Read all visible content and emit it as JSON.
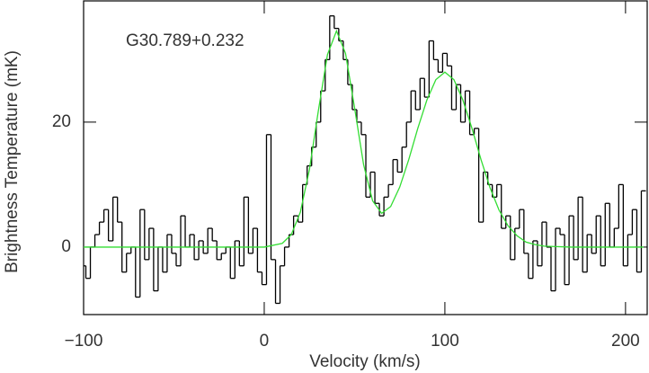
{
  "chart_data": {
    "type": "step",
    "annotation": "G30.789+0.232",
    "x_label": "Velocity (km/s)",
    "y_label": "Brightness Temperature (mK)",
    "xlim": [
      -100,
      212
    ],
    "ylim": [
      -10.8,
      39.4
    ],
    "xticks": [
      {
        "value": -100,
        "label": "−100"
      },
      0,
      100,
      200
    ],
    "yticks": [
      0,
      20
    ],
    "series": [
      {
        "color": "#000000",
        "x": [
          -100,
          -97.5,
          -95,
          -92.5,
          -90,
          -87.5,
          -85,
          -82.5,
          -80,
          -77.5,
          -75,
          -72.5,
          -70,
          -67.5,
          -65,
          -62.5,
          -60,
          -57.5,
          -55,
          -52.5,
          -50,
          -47.5,
          -45,
          -42.5,
          -40,
          -37.5,
          -35,
          -32.5,
          -30,
          -27.5,
          -25,
          -22.5,
          -20,
          -17.5,
          -15,
          -12.5,
          -10,
          -7.5,
          -5,
          -2.5,
          0,
          2.5,
          5,
          7.5,
          10,
          12.5,
          15,
          17.5,
          20,
          22.5,
          25,
          27.5,
          30,
          32.5,
          35,
          37.5,
          40,
          42.5,
          45,
          47.5,
          50,
          52.5,
          55,
          57.5,
          60,
          62.5,
          65,
          67.5,
          70,
          72.5,
          75,
          77.5,
          80,
          82.5,
          85,
          87.5,
          90,
          92.5,
          95,
          97.5,
          100,
          102.5,
          105,
          107.5,
          110,
          112.5,
          115,
          117.5,
          120,
          122.5,
          125,
          127.5,
          130,
          132.5,
          135,
          137.5,
          140,
          142.5,
          145,
          147.5,
          150,
          152.5,
          155,
          157.5,
          160,
          162.5,
          165,
          167.5,
          170,
          172.5,
          175,
          177.5,
          180,
          182.5,
          185,
          187.5,
          190,
          192.5,
          195,
          197.5,
          200,
          202.5,
          205,
          207.5,
          210
        ],
        "values": [
          -3,
          -5,
          0,
          2,
          4,
          6,
          1,
          8,
          4,
          -4,
          -1,
          0,
          -8,
          6,
          -2,
          3,
          -7,
          0,
          -4,
          2,
          -1,
          -3,
          5,
          0,
          2,
          -2,
          1,
          -1,
          3,
          1,
          -2,
          -1,
          0,
          -5,
          1,
          -3,
          8,
          -1,
          3,
          -4,
          -6,
          18,
          -2,
          -9,
          -3,
          0,
          2,
          5,
          4,
          10,
          13,
          16,
          20,
          25,
          30,
          37,
          35,
          33,
          30,
          26,
          22,
          20,
          18,
          8,
          12,
          7,
          5,
          8,
          10,
          14,
          12,
          16,
          20,
          25,
          22,
          27,
          24,
          33,
          30,
          28,
          31,
          29,
          22,
          26,
          20,
          25,
          18,
          19,
          4,
          12,
          10,
          8,
          10,
          3,
          5,
          -2,
          3,
          6,
          -1,
          -5,
          1,
          -3,
          4,
          0,
          -7,
          3,
          2,
          -6,
          5,
          -2,
          8,
          -4,
          2,
          -1,
          5,
          -3,
          7,
          0,
          3,
          10,
          -3,
          2,
          6,
          -4,
          9
        ]
      },
      {
        "color": "#33dd33",
        "x": [
          -100,
          0,
          10,
          15,
          20,
          25,
          30,
          35,
          40,
          45,
          50,
          55,
          60,
          65,
          70,
          75,
          80,
          85,
          90,
          95,
          100,
          105,
          110,
          115,
          120,
          125,
          130,
          135,
          140,
          145,
          150,
          155,
          160,
          170,
          210
        ],
        "values": [
          0,
          0,
          0.6,
          2.0,
          5.6,
          12.4,
          21.9,
          30.8,
          34.6,
          31.0,
          22.3,
          13.2,
          7.4,
          5.4,
          6.5,
          9.6,
          14.0,
          19.0,
          23.5,
          26.8,
          28,
          26.8,
          23.5,
          19.0,
          14.0,
          9.5,
          5.9,
          3.4,
          1.8,
          0.8,
          0.4,
          0.15,
          0.1,
          0,
          0
        ]
      }
    ]
  }
}
